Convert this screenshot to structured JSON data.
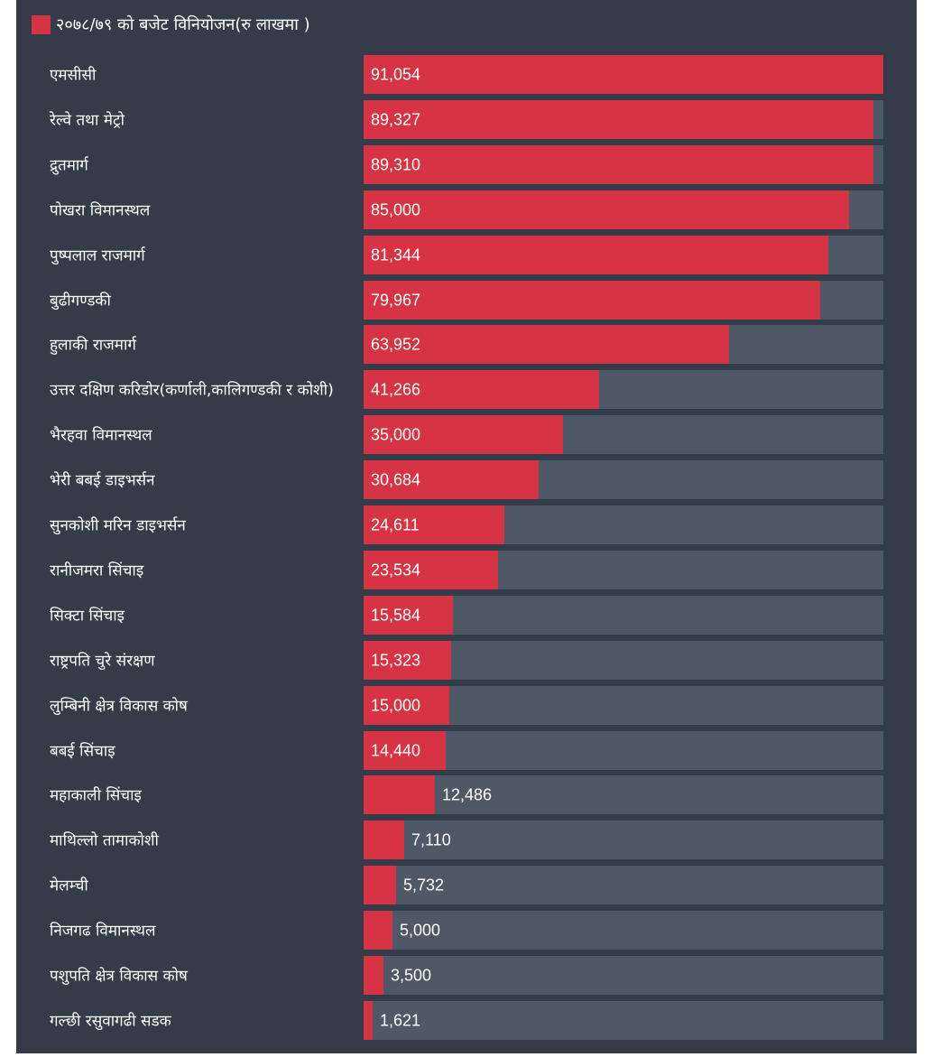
{
  "legend": {
    "label": "२०७८/७९ को बजेट विनियोजन(रु लाखमा )",
    "color": "#d63444"
  },
  "colors": {
    "background": "#343c4a",
    "track": "#4f5866",
    "bar": "#d63444",
    "text": "#ffffff"
  },
  "chart_data": {
    "type": "bar",
    "orientation": "horizontal",
    "title": "",
    "xlabel": "",
    "ylabel": "",
    "xlim": [
      0,
      91054
    ],
    "series": [
      {
        "name": "२०७८/७९ को बजेट विनियोजन(रु लाखमा )"
      }
    ],
    "categories": [
      "एमसीसी",
      "रेल्वे तथा मेट्रो",
      "द्रुतमार्ग",
      "पोखरा विमानस्थल",
      "पुष्पलाल राजमार्ग",
      "बुढीगण्डकी",
      "हुलाकी राजमार्ग",
      "उत्तर दक्षिण करिडोर(कर्णाली,कालिगण्डकी र कोशी)",
      "भैरहवा विमानस्थल",
      "भेरी बबई डाइभर्सन",
      "सुनकोशी मरिन डाइभर्सन",
      "रानीजमरा सिंचाइ",
      "सिक्टा सिंचाइ",
      "राष्ट्रपति चुरे संरक्षण",
      "लुम्बिनी क्षेत्र विकास कोष",
      "बबई सिंचाइ",
      "महाकाली सिंचाइ",
      "माथिल्लो तामाकोशी",
      "मेलम्ची",
      "निजगढ विमानस्थल",
      "पशुपति क्षेत्र विकास कोष",
      "गल्छी रसुवागढी सडक"
    ],
    "values": [
      91054,
      89327,
      89310,
      85000,
      81344,
      79967,
      63952,
      41266,
      35000,
      30684,
      24611,
      23534,
      15584,
      15323,
      15000,
      14440,
      12486,
      7110,
      5732,
      5000,
      3500,
      1621
    ],
    "value_labels": [
      "91,054",
      "89,327",
      "89,310",
      "85,000",
      "81,344",
      "79,967",
      "63,952",
      "41,266",
      "35,000",
      "30,684",
      "24,611",
      "23,534",
      "15,584",
      "15,323",
      "15,000",
      "14,440",
      "12,486",
      "7,110",
      "5,732",
      "5,000",
      "3,500",
      "1,621"
    ]
  }
}
